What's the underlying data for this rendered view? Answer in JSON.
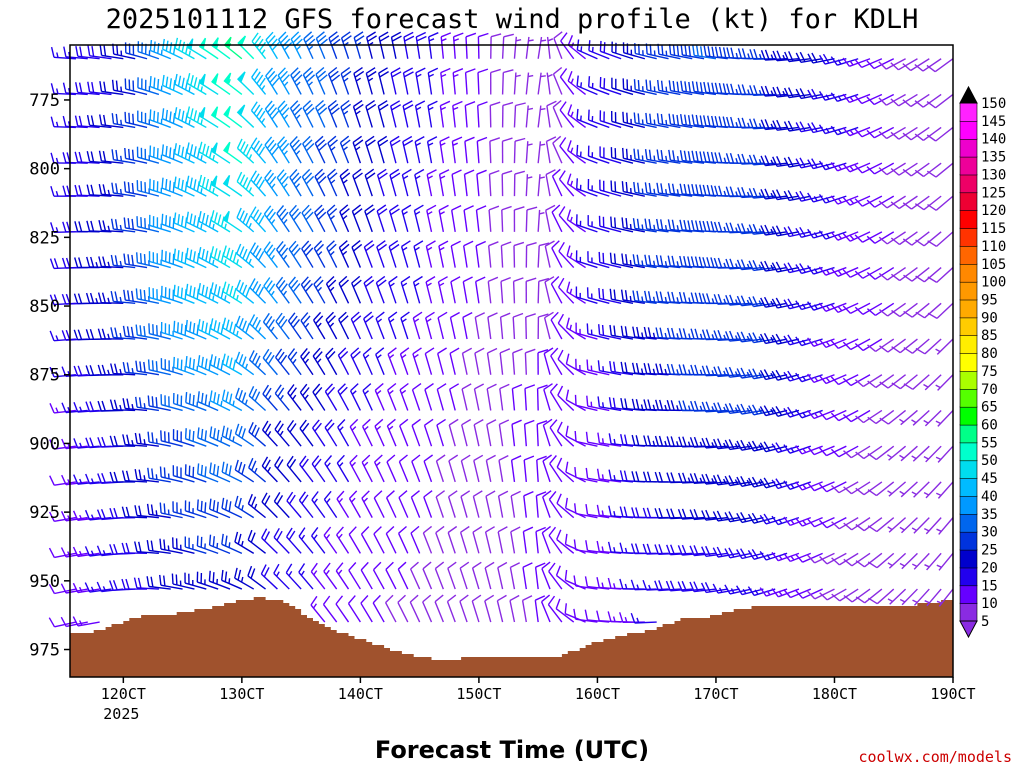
{
  "chart_data": {
    "type": "wind-barb-profile",
    "title": "2025101112 GFS forecast wind profile (kt) for KDLH",
    "xlabel": "Forecast Time (UTC)",
    "ylabel": "",
    "watermark": "coolwx.com/models",
    "x_ticks": [
      {
        "hour": 120,
        "label": "120CT",
        "sublabel": "2025"
      },
      {
        "hour": 130,
        "label": "130CT"
      },
      {
        "hour": 140,
        "label": "140CT"
      },
      {
        "hour": 150,
        "label": "150CT"
      },
      {
        "hour": 160,
        "label": "160CT"
      },
      {
        "hour": 170,
        "label": "170CT"
      },
      {
        "hour": 180,
        "label": "180CT"
      },
      {
        "hour": 190,
        "label": "190CT"
      }
    ],
    "x_range": [
      115.5,
      190
    ],
    "y_range_hpa": [
      755,
      985
    ],
    "y_ticks": [
      775,
      800,
      825,
      850,
      875,
      900,
      925,
      950,
      975
    ],
    "levels_hpa": [
      760,
      773,
      785,
      798,
      810,
      823,
      836,
      849,
      862,
      875,
      888,
      901,
      914,
      927,
      940,
      953,
      965,
      978
    ],
    "time_step_hours": 1,
    "colorbar": {
      "unit": "kt",
      "ticks": [
        5,
        10,
        15,
        20,
        25,
        30,
        35,
        40,
        45,
        50,
        55,
        60,
        65,
        70,
        75,
        80,
        85,
        90,
        95,
        100,
        105,
        110,
        115,
        120,
        125,
        130,
        135,
        140,
        145,
        150
      ],
      "colors": [
        "#8a2be2",
        "#6600ff",
        "#2200ee",
        "#0000cc",
        "#0033dd",
        "#0066ee",
        "#0099ff",
        "#00bbff",
        "#00ddee",
        "#00ffcc",
        "#00ff88",
        "#00ff00",
        "#55ff00",
        "#aaff00",
        "#ffff00",
        "#ffee00",
        "#ffcc00",
        "#ffaa00",
        "#ff9900",
        "#ff8800",
        "#ff6600",
        "#ff3300",
        "#ff0000",
        "#ee0033",
        "#ee0066",
        "#ee0099",
        "#ee00cc",
        "#ff00ff",
        "#ff22ff"
      ]
    },
    "terrain_color": "#a0522d",
    "surface_pressure_hpa": [
      {
        "hour": 115.5,
        "p": 969
      },
      {
        "hour": 117,
        "p": 969
      },
      {
        "hour": 119,
        "p": 966
      },
      {
        "hour": 121,
        "p": 963
      },
      {
        "hour": 124,
        "p": 962
      },
      {
        "hour": 127,
        "p": 960
      },
      {
        "hour": 129,
        "p": 958
      },
      {
        "hour": 131,
        "p": 956
      },
      {
        "hour": 133,
        "p": 957
      },
      {
        "hour": 135,
        "p": 962
      },
      {
        "hour": 137,
        "p": 967
      },
      {
        "hour": 139,
        "p": 970
      },
      {
        "hour": 141,
        "p": 973
      },
      {
        "hour": 143,
        "p": 976
      },
      {
        "hour": 145,
        "p": 978
      },
      {
        "hour": 147,
        "p": 979
      },
      {
        "hour": 149,
        "p": 978
      },
      {
        "hour": 151,
        "p": 978
      },
      {
        "hour": 153,
        "p": 978
      },
      {
        "hour": 155,
        "p": 978
      },
      {
        "hour": 157,
        "p": 977
      },
      {
        "hour": 159,
        "p": 973
      },
      {
        "hour": 161,
        "p": 971
      },
      {
        "hour": 163,
        "p": 969
      },
      {
        "hour": 165,
        "p": 967
      },
      {
        "hour": 167,
        "p": 964
      },
      {
        "hour": 169,
        "p": 963
      },
      {
        "hour": 171,
        "p": 961
      },
      {
        "hour": 174,
        "p": 959
      },
      {
        "hour": 177,
        "p": 959
      },
      {
        "hour": 180,
        "p": 959
      },
      {
        "hour": 183,
        "p": 959
      },
      {
        "hour": 186,
        "p": 959
      },
      {
        "hour": 188,
        "p": 958
      },
      {
        "hour": 190,
        "p": 957
      }
    ],
    "wind_regimes": [
      {
        "hour": 116,
        "dir": 265,
        "speed": {
          "760": 15,
          "850": 18,
          "900": 12,
          "978": 10
        }
      },
      {
        "hour": 120,
        "dir": 270,
        "speed": {
          "760": 20,
          "850": 25,
          "900": 20,
          "978": 15
        }
      },
      {
        "hour": 126,
        "dir": 290,
        "speed": {
          "760": 45,
          "850": 40,
          "900": 30,
          "978": 20
        }
      },
      {
        "hour": 130,
        "dir": 300,
        "speed": {
          "760": 55,
          "850": 45,
          "900": 35,
          "978": 20
        }
      },
      {
        "hour": 133,
        "dir": 320,
        "speed": {
          "760": 40,
          "850": 35,
          "900": 25,
          "978": 15
        }
      },
      {
        "hour": 140,
        "dir": 335,
        "speed": {
          "760": 25,
          "850": 20,
          "900": 15,
          "978": 10
        }
      },
      {
        "hour": 150,
        "dir": 350,
        "speed": {
          "760": 10,
          "850": 10,
          "900": 8,
          "978": 8
        }
      },
      {
        "hour": 155,
        "dir": 0,
        "speed": {
          "760": 5,
          "850": 8,
          "900": 12,
          "978": 10
        }
      },
      {
        "hour": 160,
        "dir": 285,
        "speed": {
          "760": 15,
          "850": 15,
          "900": 10,
          "978": 10
        }
      },
      {
        "hour": 165,
        "dir": 275,
        "speed": {
          "760": 25,
          "850": 25,
          "900": 22,
          "978": 15
        }
      },
      {
        "hour": 170,
        "dir": 270,
        "speed": {
          "760": 30,
          "850": 28,
          "900": 25,
          "978": 15
        }
      },
      {
        "hour": 175,
        "dir": 260,
        "speed": {
          "760": 25,
          "850": 25,
          "900": 25,
          "978": 12
        }
      },
      {
        "hour": 180,
        "dir": 250,
        "speed": {
          "760": 20,
          "850": 15,
          "900": 12,
          "978": 8
        }
      },
      {
        "hour": 185,
        "dir": 235,
        "speed": {
          "760": 10,
          "850": 10,
          "900": 8,
          "978": 8
        }
      },
      {
        "hour": 190,
        "dir": 225,
        "speed": {
          "760": 8,
          "850": 8,
          "900": 5,
          "978": 5
        }
      }
    ]
  }
}
